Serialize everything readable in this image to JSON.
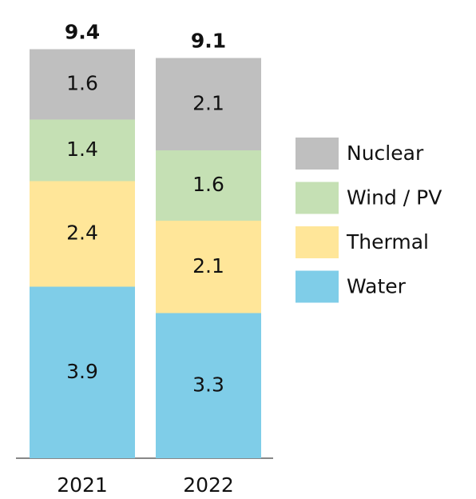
{
  "chart_data": {
    "type": "stacked_bar",
    "categories": [
      "2021",
      "2022"
    ],
    "series": [
      {
        "name": "Water",
        "color": "#7fcde8",
        "values": [
          3.9,
          3.3
        ]
      },
      {
        "name": "Thermal",
        "color": "#ffe699",
        "values": [
          2.4,
          2.1
        ]
      },
      {
        "name": "Wind / PV",
        "color": "#c5e0b4",
        "values": [
          1.4,
          1.6
        ]
      },
      {
        "name": "Nuclear",
        "color": "#bfbfbf",
        "values": [
          1.6,
          2.1
        ]
      }
    ],
    "totals": [
      9.4,
      9.1
    ]
  }
}
